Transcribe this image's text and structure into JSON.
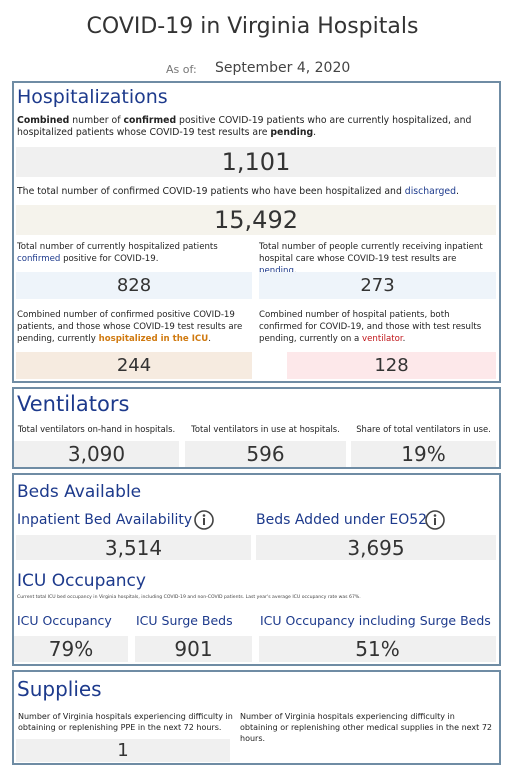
{
  "header": {
    "title": "COVID-19 in Virginia Hospitals",
    "as_of_label": "As of:",
    "date": "September 4, 2020"
  },
  "hospitalizations": {
    "title": "Hospitalizations",
    "total": {
      "desc": [
        "Combined",
        " number of ",
        "confirmed",
        " positive COVID-19 patients who are currently hospitalized, and hospitalized patients whose COVID-19 test results are ",
        "pending",
        "."
      ],
      "value": "1,101"
    },
    "discharged": {
      "desc": [
        "The total number of confirmed COVID-19 patients who have been hospitalized and ",
        "discharged",
        "."
      ],
      "value": "15,492"
    },
    "confirmed": {
      "desc": [
        "Total number of currently hospitalized patients ",
        "confirmed",
        " positive for COVID-19."
      ],
      "value": "828"
    },
    "pending": {
      "desc": [
        "Total number of people currently receiving inpatient hospital care whose COVID-19 test results are ",
        "pending",
        "."
      ],
      "value": "273"
    },
    "icu": {
      "desc": [
        "Combined number of confirmed positive COVID-19 patients, and those whose COVID-19 test results are pending, currently ",
        "hospitalized in the ICU",
        "."
      ],
      "value": "244"
    },
    "ventilator": {
      "desc": [
        "Combined number of hospital patients, both confirmed for COVID-19, and those with test results pending, currently on a ",
        "ventilator",
        "."
      ],
      "value": "128"
    }
  },
  "ventilators": {
    "title": "Ventilators",
    "items": [
      {
        "label": "Total ventilators on-hand in hospitals.",
        "value": "3,090"
      },
      {
        "label": "Total ventilators in use at hospitals.",
        "value": "596"
      },
      {
        "label": "Share of total ventilators in use.",
        "value": "19%"
      }
    ]
  },
  "beds": {
    "title": "Beds Available",
    "items": [
      {
        "label": "Inpatient Bed Availability",
        "value": "3,514"
      },
      {
        "label": "Beds Added under EO52",
        "value": "3,695"
      }
    ]
  },
  "icu": {
    "title": "ICU Occupancy",
    "note": "Current total ICU bed occupancy in Virginia hospitals, including COVID-19 and non-COVID patients. Last year's average ICU occupancy rate was 67%.",
    "items": [
      {
        "label": "ICU Occupancy",
        "value": "79%"
      },
      {
        "label": "ICU Surge Beds",
        "value": "901"
      },
      {
        "label": "ICU Occupancy including Surge Beds",
        "value": "51%"
      }
    ]
  },
  "supplies": {
    "title": "Supplies",
    "items": [
      {
        "label": "Number of Virginia hospitals experiencing difficulty in obtaining or replenishing PPE in the next 72 hours.",
        "value": "1"
      },
      {
        "label": "Number of Virginia hospitals experiencing difficulty in obtaining or replenishing other medical supplies in the next 72 hours."
      }
    ]
  }
}
